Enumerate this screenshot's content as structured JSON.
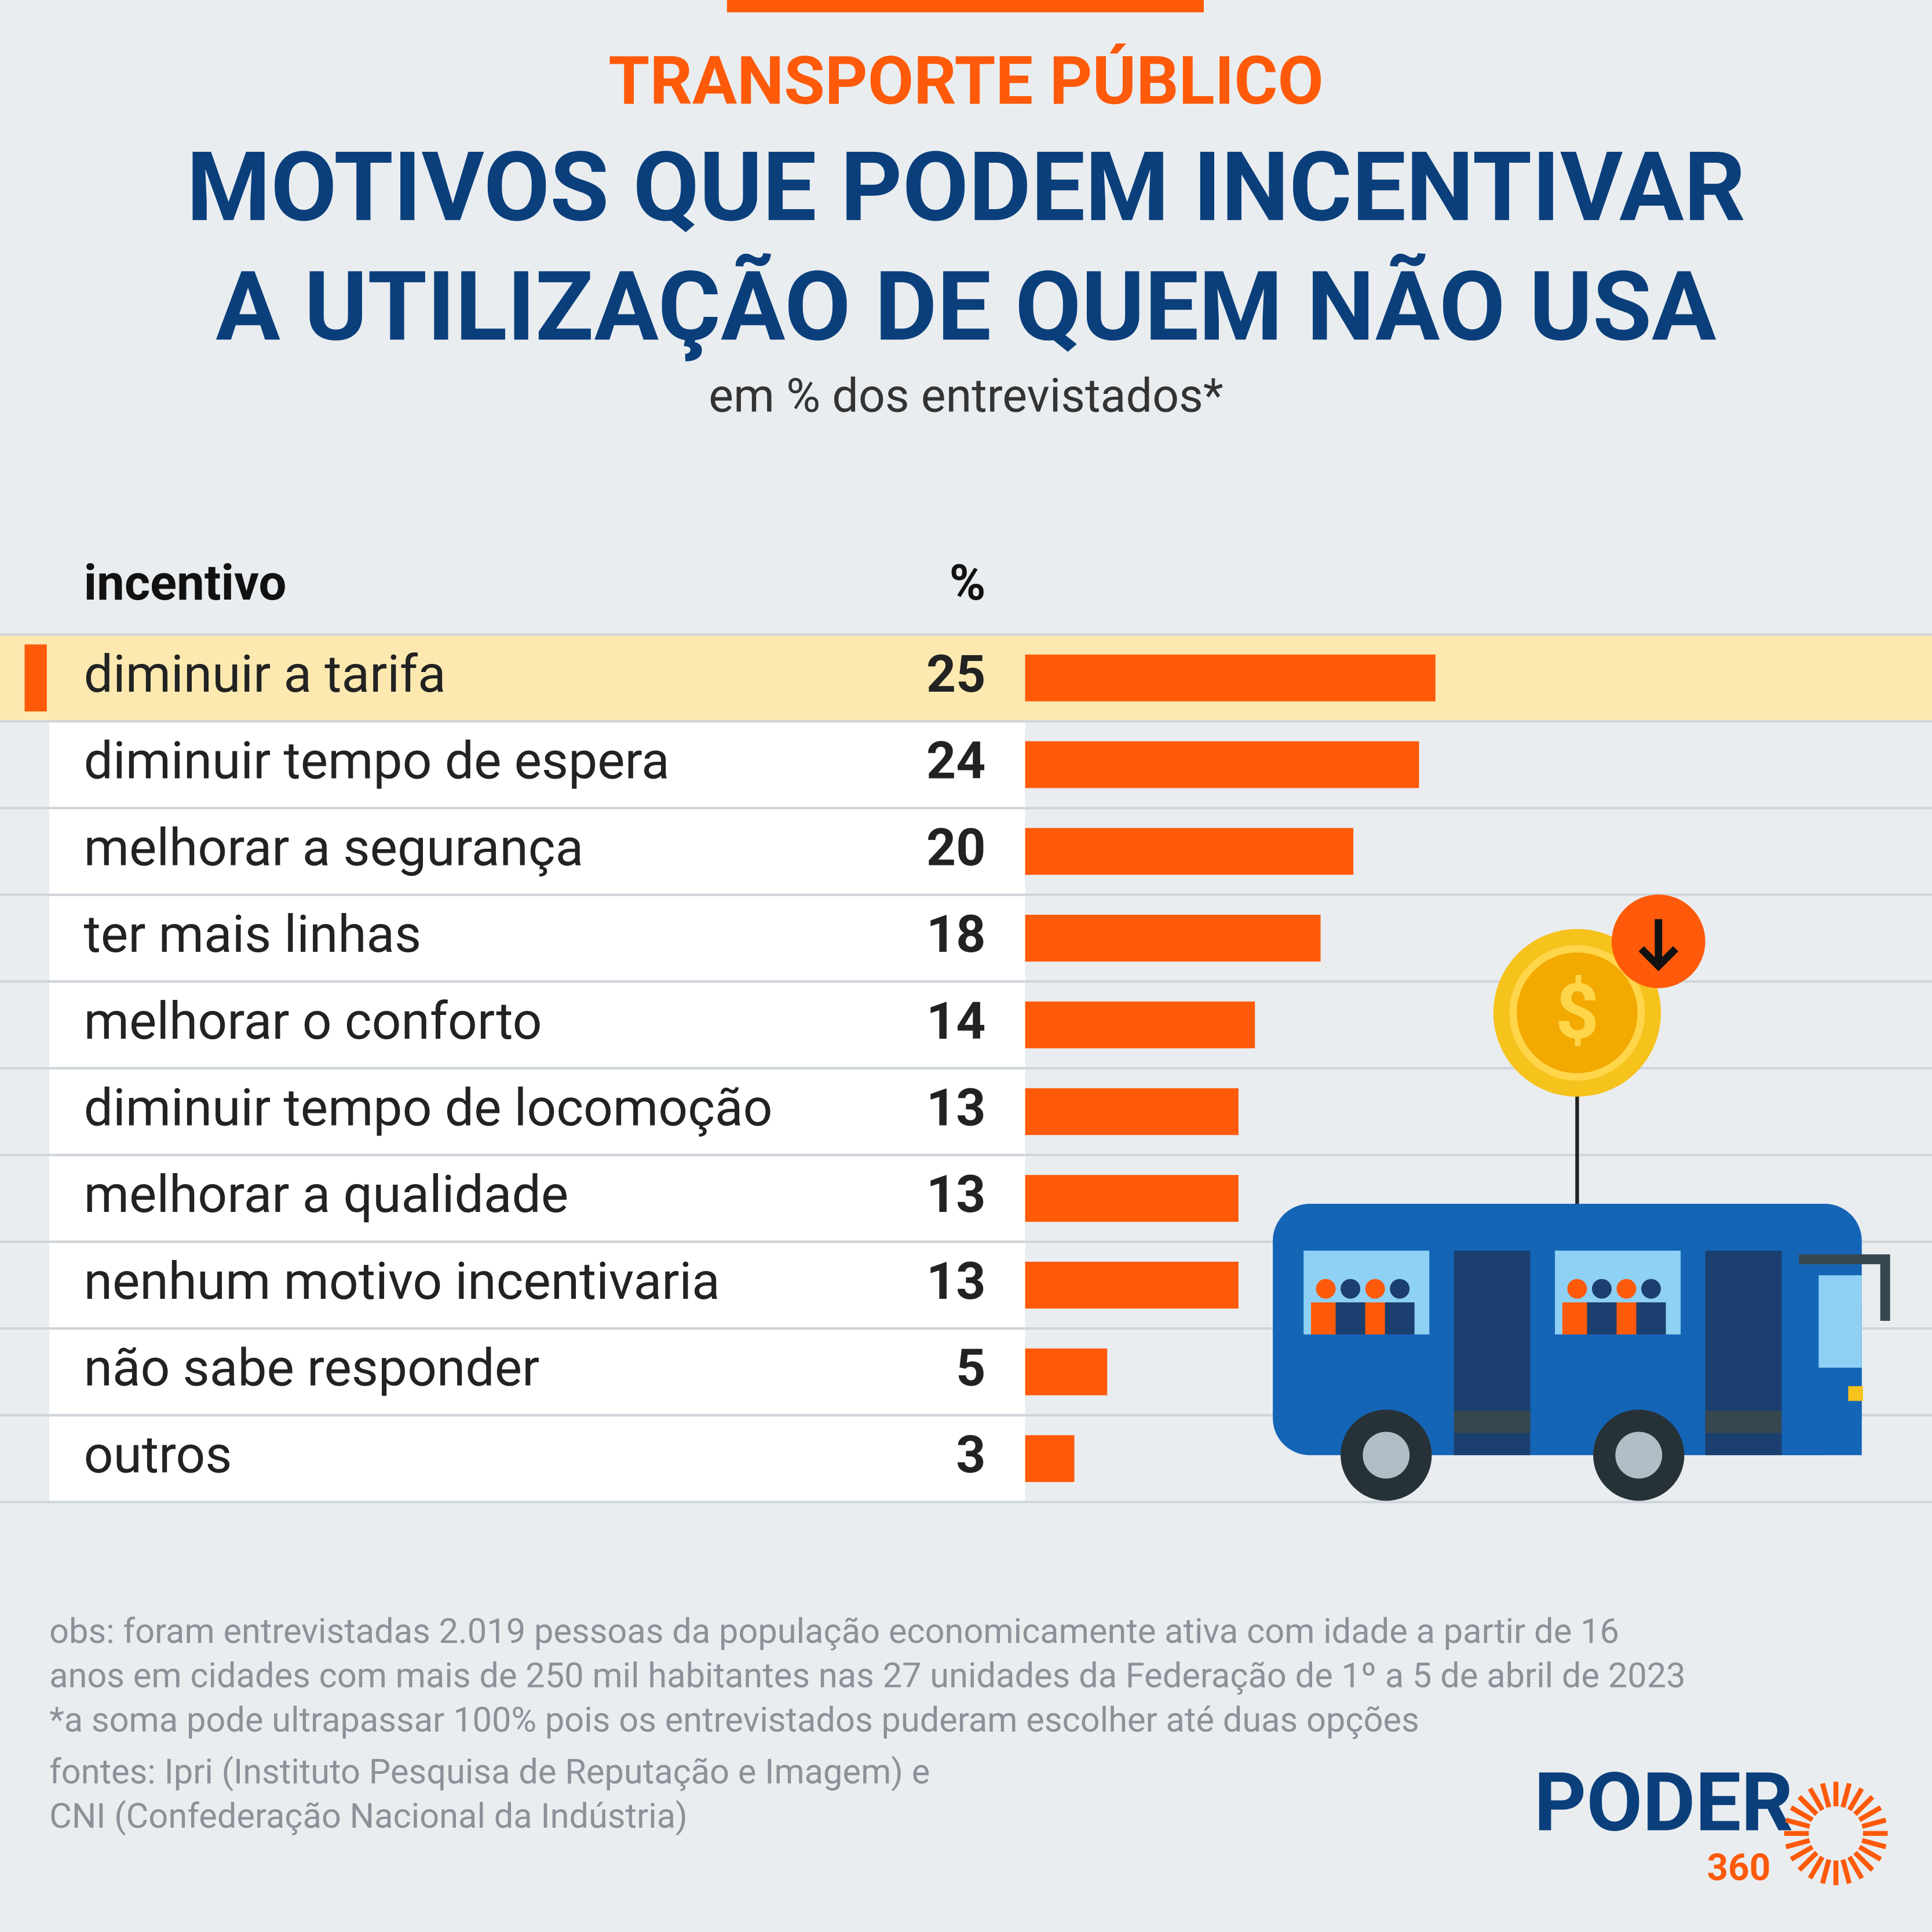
{
  "chart_data": {
    "type": "bar",
    "orientation": "horizontal",
    "supertitle": "TRANSPORTE PÚBLICO",
    "title": [
      "MOTIVOS QUE PODEM INCENTIVAR",
      "A UTILIZAÇÃO DE QUEM NÃO USA"
    ],
    "subtitle": "em % dos entrevistados*",
    "column_headers": [
      "incentivo",
      "%"
    ],
    "categories": [
      "diminuir a tarifa",
      "diminuir tempo de espera",
      "melhorar a segurança",
      "ter mais linhas",
      "melhorar o conforto",
      "diminuir tempo de locomoção",
      "melhorar a qualidade",
      "nenhum motivo incentivaria",
      "não sabe responder",
      "outros"
    ],
    "values": [
      25,
      24,
      20,
      18,
      14,
      13,
      13,
      13,
      5,
      3
    ],
    "color": "#ff5a0a",
    "notes": [
      "obs: foram entrevistadas 2.019 pessoas da população economicamente ativa com idade a partir de 16",
      "anos em cidades com mais de 250 mil habitantes nas 27 unidades da Federação de 1º a 5 de abril de 2023",
      "*a soma pode ultrapassar 100% pois os entrevistados puderam escolher até duas opções",
      "fontes: Ipri (Instituto Pesquisa de Reputação e Imagem) e",
      "CNI (Confederação Nacional da Indústria)"
    ],
    "logo": [
      "PODER",
      "360"
    ]
  }
}
